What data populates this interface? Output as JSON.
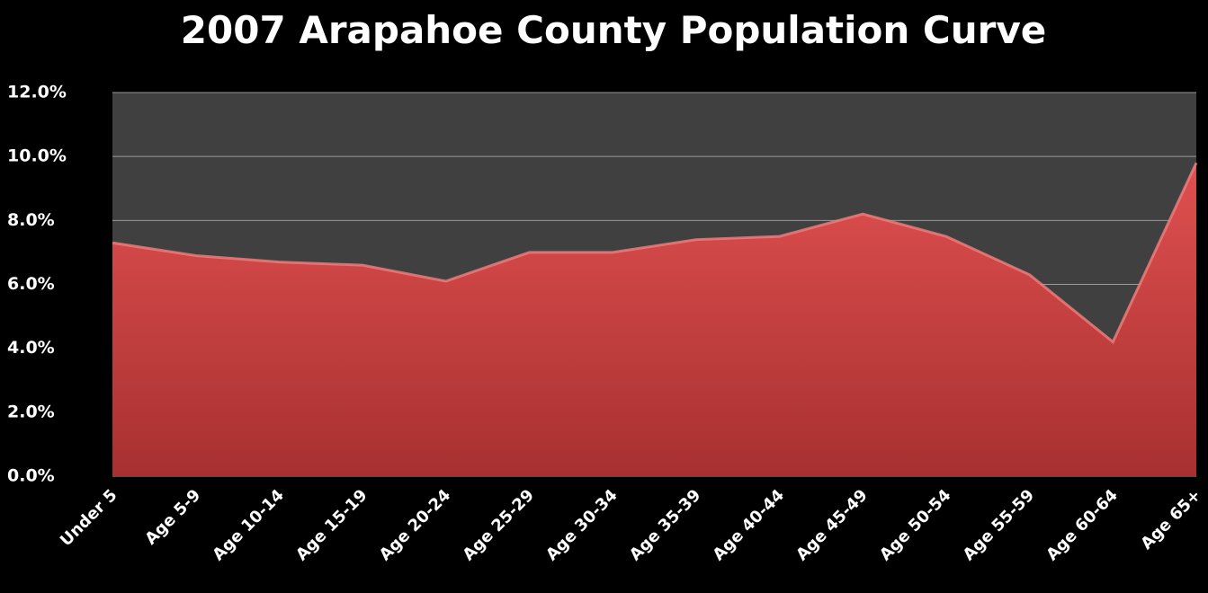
{
  "chart_data": {
    "type": "area",
    "title": "2007 Arapahoe County Population Curve",
    "categories": [
      "Under 5",
      "Age 5-9",
      "Age 10-14",
      "Age 15-19",
      "Age 20-24",
      "Age 25-29",
      "Age 30-34",
      "Age 35-39",
      "Age 40-44",
      "Age 45-49",
      "Age 50-54",
      "Age 55-59",
      "Age 60-64",
      "Age 65+"
    ],
    "values": [
      7.3,
      6.9,
      6.7,
      6.6,
      6.1,
      7.0,
      7.0,
      7.4,
      7.5,
      8.2,
      7.5,
      6.3,
      4.2,
      9.8
    ],
    "color": "#d94545",
    "ylim": [
      0,
      12
    ],
    "yticks": [
      {
        "value": 0,
        "label": "0.0%"
      },
      {
        "value": 2,
        "label": "2.0%"
      },
      {
        "value": 4,
        "label": "4.0%"
      },
      {
        "value": 6,
        "label": "6.0%"
      },
      {
        "value": 8,
        "label": "8.0%"
      },
      {
        "value": 10,
        "label": "10.0%"
      },
      {
        "value": 12,
        "label": "12.0%"
      }
    ],
    "grid": true
  }
}
